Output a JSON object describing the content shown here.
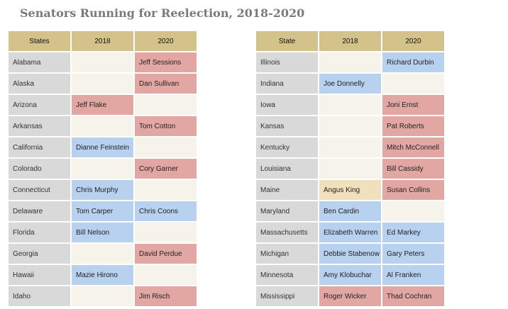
{
  "title": "Senators Running for Reelection, 2018-2020",
  "colors": {
    "header": "#d3c28a",
    "state": "#d9d9d9",
    "empty": "#f6f3ea",
    "democrat": "#b7d1ef",
    "republican": "#e3a7a3",
    "independent": "#f0e0bc"
  },
  "left_table": {
    "headers": [
      "States",
      "2018",
      "2020"
    ],
    "rows": [
      {
        "state": "Alabama",
        "y2018": "",
        "c2018": "gap",
        "y2020": "Jeff Sessions",
        "c2020": "red"
      },
      {
        "state": "Alaska",
        "y2018": "",
        "c2018": "gap",
        "y2020": "Dan Sullivan",
        "c2020": "red"
      },
      {
        "state": "Arizona",
        "y2018": "Jeff Flake",
        "c2018": "red",
        "y2020": "",
        "c2020": "gap"
      },
      {
        "state": "Arkansas",
        "y2018": "",
        "c2018": "gap",
        "y2020": "Tom Cotton",
        "c2020": "red"
      },
      {
        "state": "California",
        "y2018": "Dianne Feinstein",
        "c2018": "blue",
        "y2020": "",
        "c2020": "gap"
      },
      {
        "state": "Colorado",
        "y2018": "",
        "c2018": "gap",
        "y2020": "Cory Garner",
        "c2020": "red"
      },
      {
        "state": "Connecticut",
        "y2018": "Chris Murphy",
        "c2018": "blue",
        "y2020": "",
        "c2020": "gap"
      },
      {
        "state": "Delaware",
        "y2018": "Tom Carper",
        "c2018": "blue",
        "y2020": "Chris Coons",
        "c2020": "blue"
      },
      {
        "state": "Florida",
        "y2018": "Bill Nelson",
        "c2018": "blue",
        "y2020": "",
        "c2020": "gap"
      },
      {
        "state": "Georgia",
        "y2018": "",
        "c2018": "gap",
        "y2020": "David Perdue",
        "c2020": "red"
      },
      {
        "state": "Hawaii",
        "y2018": "Mazie Hirono",
        "c2018": "blue",
        "y2020": "",
        "c2020": "gap"
      },
      {
        "state": "Idaho",
        "y2018": "",
        "c2018": "gap",
        "y2020": "Jim Risch",
        "c2020": "red"
      }
    ]
  },
  "right_table": {
    "headers": [
      "State",
      "2018",
      "2020"
    ],
    "rows": [
      {
        "state": "Illinois",
        "y2018": "",
        "c2018": "gap",
        "y2020": "Richard Durbin",
        "c2020": "blue"
      },
      {
        "state": "Indiana",
        "y2018": "Joe Donnelly",
        "c2018": "blue",
        "y2020": "",
        "c2020": "gap"
      },
      {
        "state": "Iowa",
        "y2018": "",
        "c2018": "gap",
        "y2020": "Joni Ernst",
        "c2020": "red"
      },
      {
        "state": "Kansas",
        "y2018": "",
        "c2018": "gap",
        "y2020": "Pat Roberts",
        "c2020": "red"
      },
      {
        "state": "Kentucky",
        "y2018": "",
        "c2018": "gap",
        "y2020": "Mitch McConnell",
        "c2020": "red"
      },
      {
        "state": "Louisiana",
        "y2018": "",
        "c2018": "gap",
        "y2020": "Bill Cassidy",
        "c2020": "red"
      },
      {
        "state": "Maine",
        "y2018": "Angus King",
        "c2018": "tan",
        "y2020": "Susan Collins",
        "c2020": "red"
      },
      {
        "state": "Maryland",
        "y2018": "Ben Cardin",
        "c2018": "blue",
        "y2020": "",
        "c2020": "gap"
      },
      {
        "state": "Massachusetts",
        "y2018": "Elizabeth Warren",
        "c2018": "blue",
        "y2020": "Ed Markey",
        "c2020": "blue"
      },
      {
        "state": "Michigan",
        "y2018": "Debbie Stabenow",
        "c2018": "blue",
        "y2020": "Gary Peters",
        "c2020": "blue"
      },
      {
        "state": "Minnesota",
        "y2018": "Amy Klobuchar",
        "c2018": "blue",
        "y2020": "Al Franken",
        "c2020": "blue"
      },
      {
        "state": "Mississippi",
        "y2018": "Roger Wicker",
        "c2018": "red",
        "y2020": "Thad Cochran",
        "c2020": "red"
      }
    ]
  }
}
